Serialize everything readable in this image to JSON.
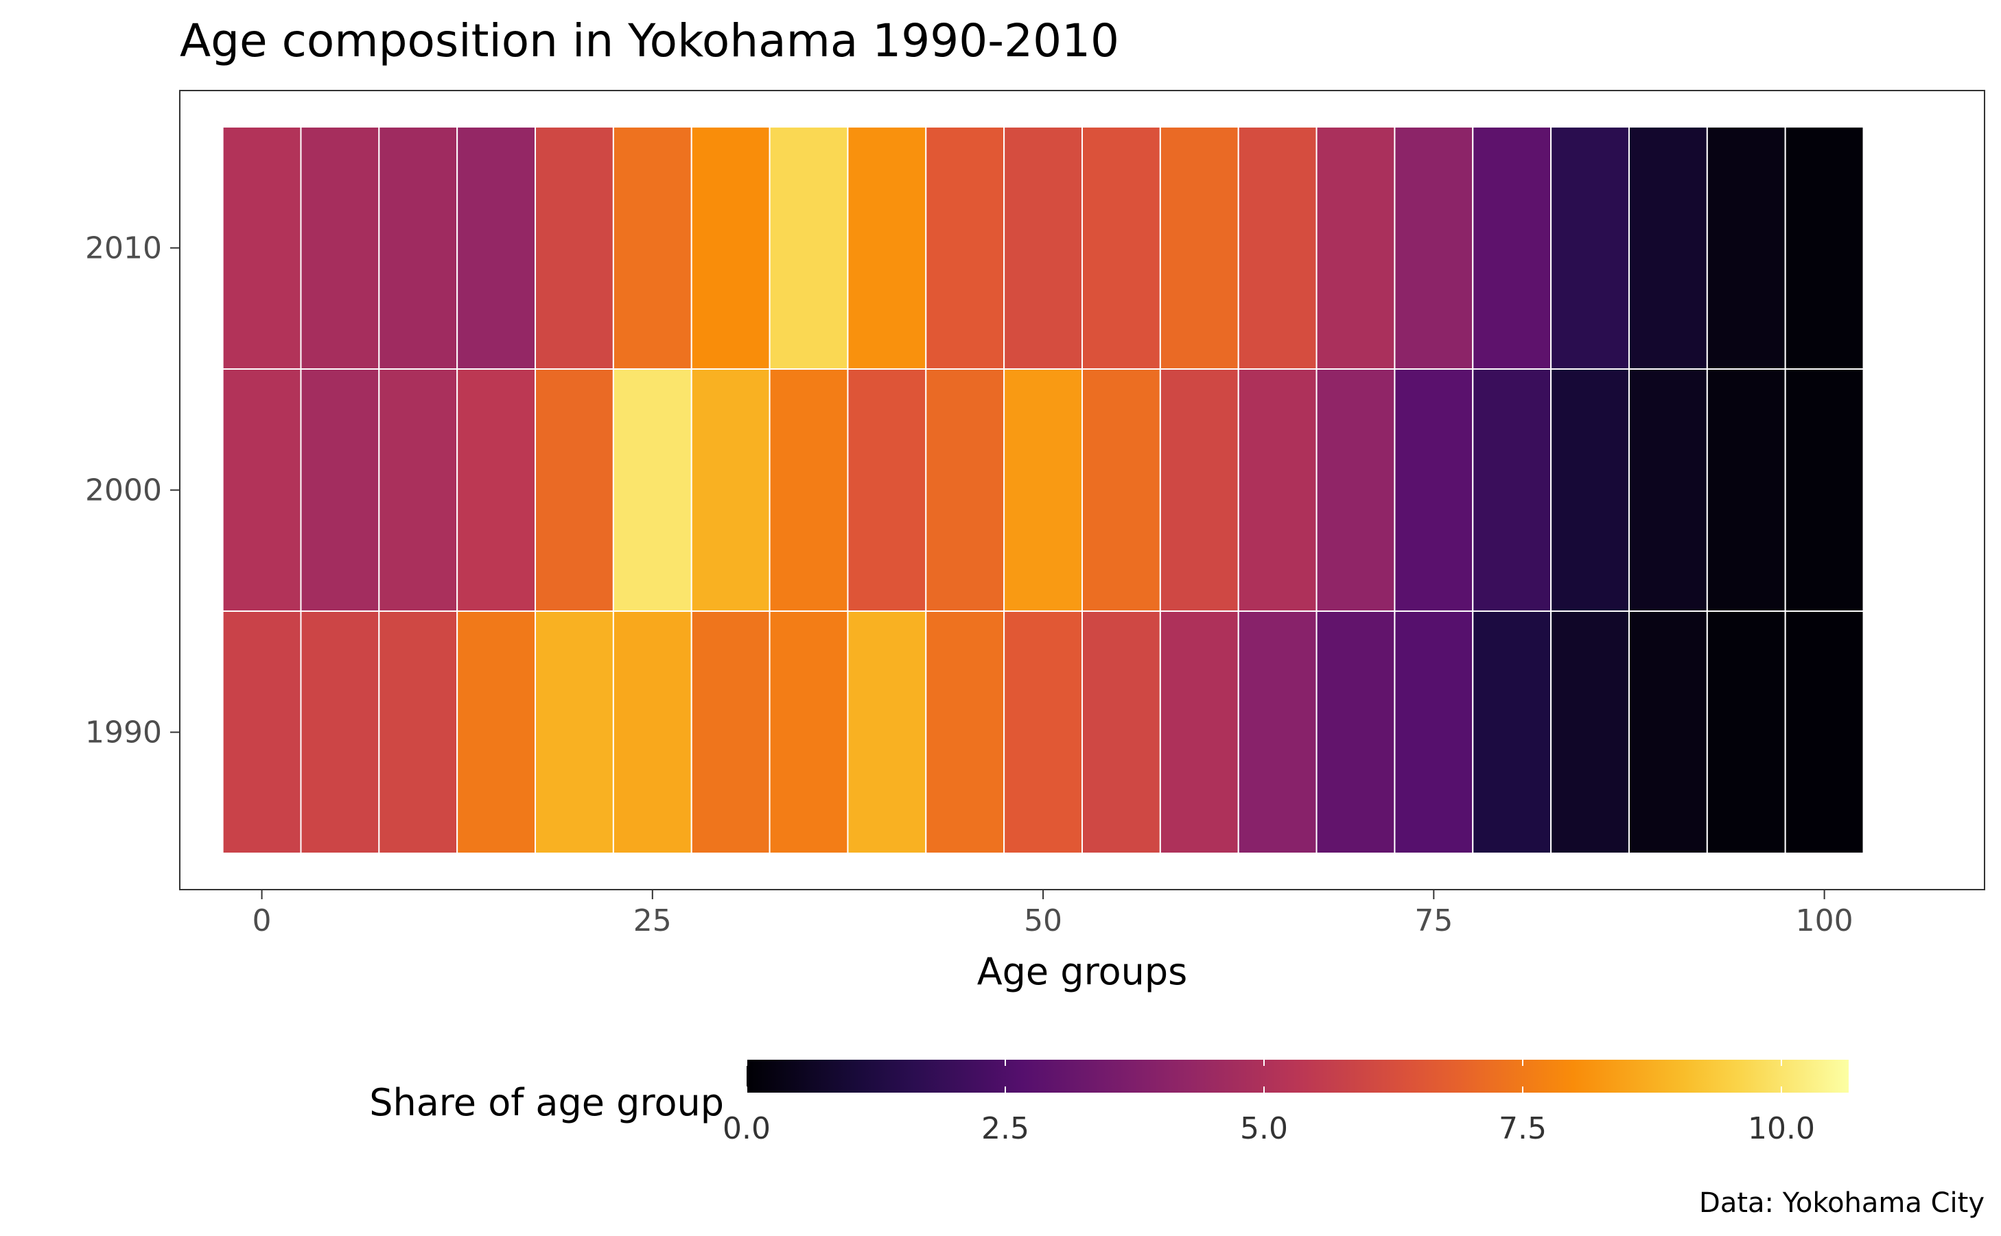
{
  "chart_data": {
    "type": "heatmap",
    "title": "Age composition in Yokohama 1990-2010",
    "xlabel": "Age groups",
    "ylabel": "",
    "caption": "Data: Yokohama City",
    "x": [
      0,
      5,
      10,
      15,
      20,
      25,
      30,
      35,
      40,
      45,
      50,
      55,
      60,
      65,
      70,
      75,
      80,
      85,
      90,
      95,
      100
    ],
    "x_bin_width": 5,
    "xlim": [
      -5.25,
      110.25
    ],
    "x_ticks": [
      0,
      25,
      50,
      75,
      100
    ],
    "x_tick_labels": [
      "0",
      "25",
      "50",
      "75",
      "100"
    ],
    "y": [
      1990,
      2000,
      2010
    ],
    "y_tick_labels": [
      "1990",
      "2000",
      "2010"
    ],
    "ylim": [
      1983.5,
      2016.5
    ],
    "values": [
      [
        5.8,
        5.9,
        6.0,
        7.5,
        8.8,
        8.6,
        7.4,
        7.6,
        8.8,
        7.3,
        6.6,
        6.0,
        5.0,
        4.0,
        3.0,
        2.7,
        1.2,
        0.7,
        0.3,
        0.1,
        0.05
      ],
      [
        5.1,
        4.7,
        4.9,
        5.4,
        7.1,
        10.0,
        8.8,
        7.6,
        6.5,
        7.1,
        8.3,
        7.2,
        6.0,
        5.0,
        4.2,
        2.8,
        2.0,
        1.0,
        0.5,
        0.2,
        0.1
      ],
      [
        5.1,
        4.8,
        4.6,
        4.3,
        6.0,
        7.3,
        8.0,
        9.7,
        8.1,
        6.6,
        6.2,
        6.4,
        7.1,
        6.2,
        4.9,
        4.1,
        2.9,
        1.6,
        0.8,
        0.3,
        0.1
      ]
    ],
    "legend": {
      "title": "Share of age group",
      "placement": "bottom",
      "min": 0,
      "max": 10.65,
      "ticks": [
        0,
        2.5,
        5,
        7.5,
        10
      ],
      "tick_labels": [
        "0.0",
        "2.5",
        "5.0",
        "7.5",
        "10.0"
      ],
      "palette": "inferno"
    },
    "grid": false
  }
}
